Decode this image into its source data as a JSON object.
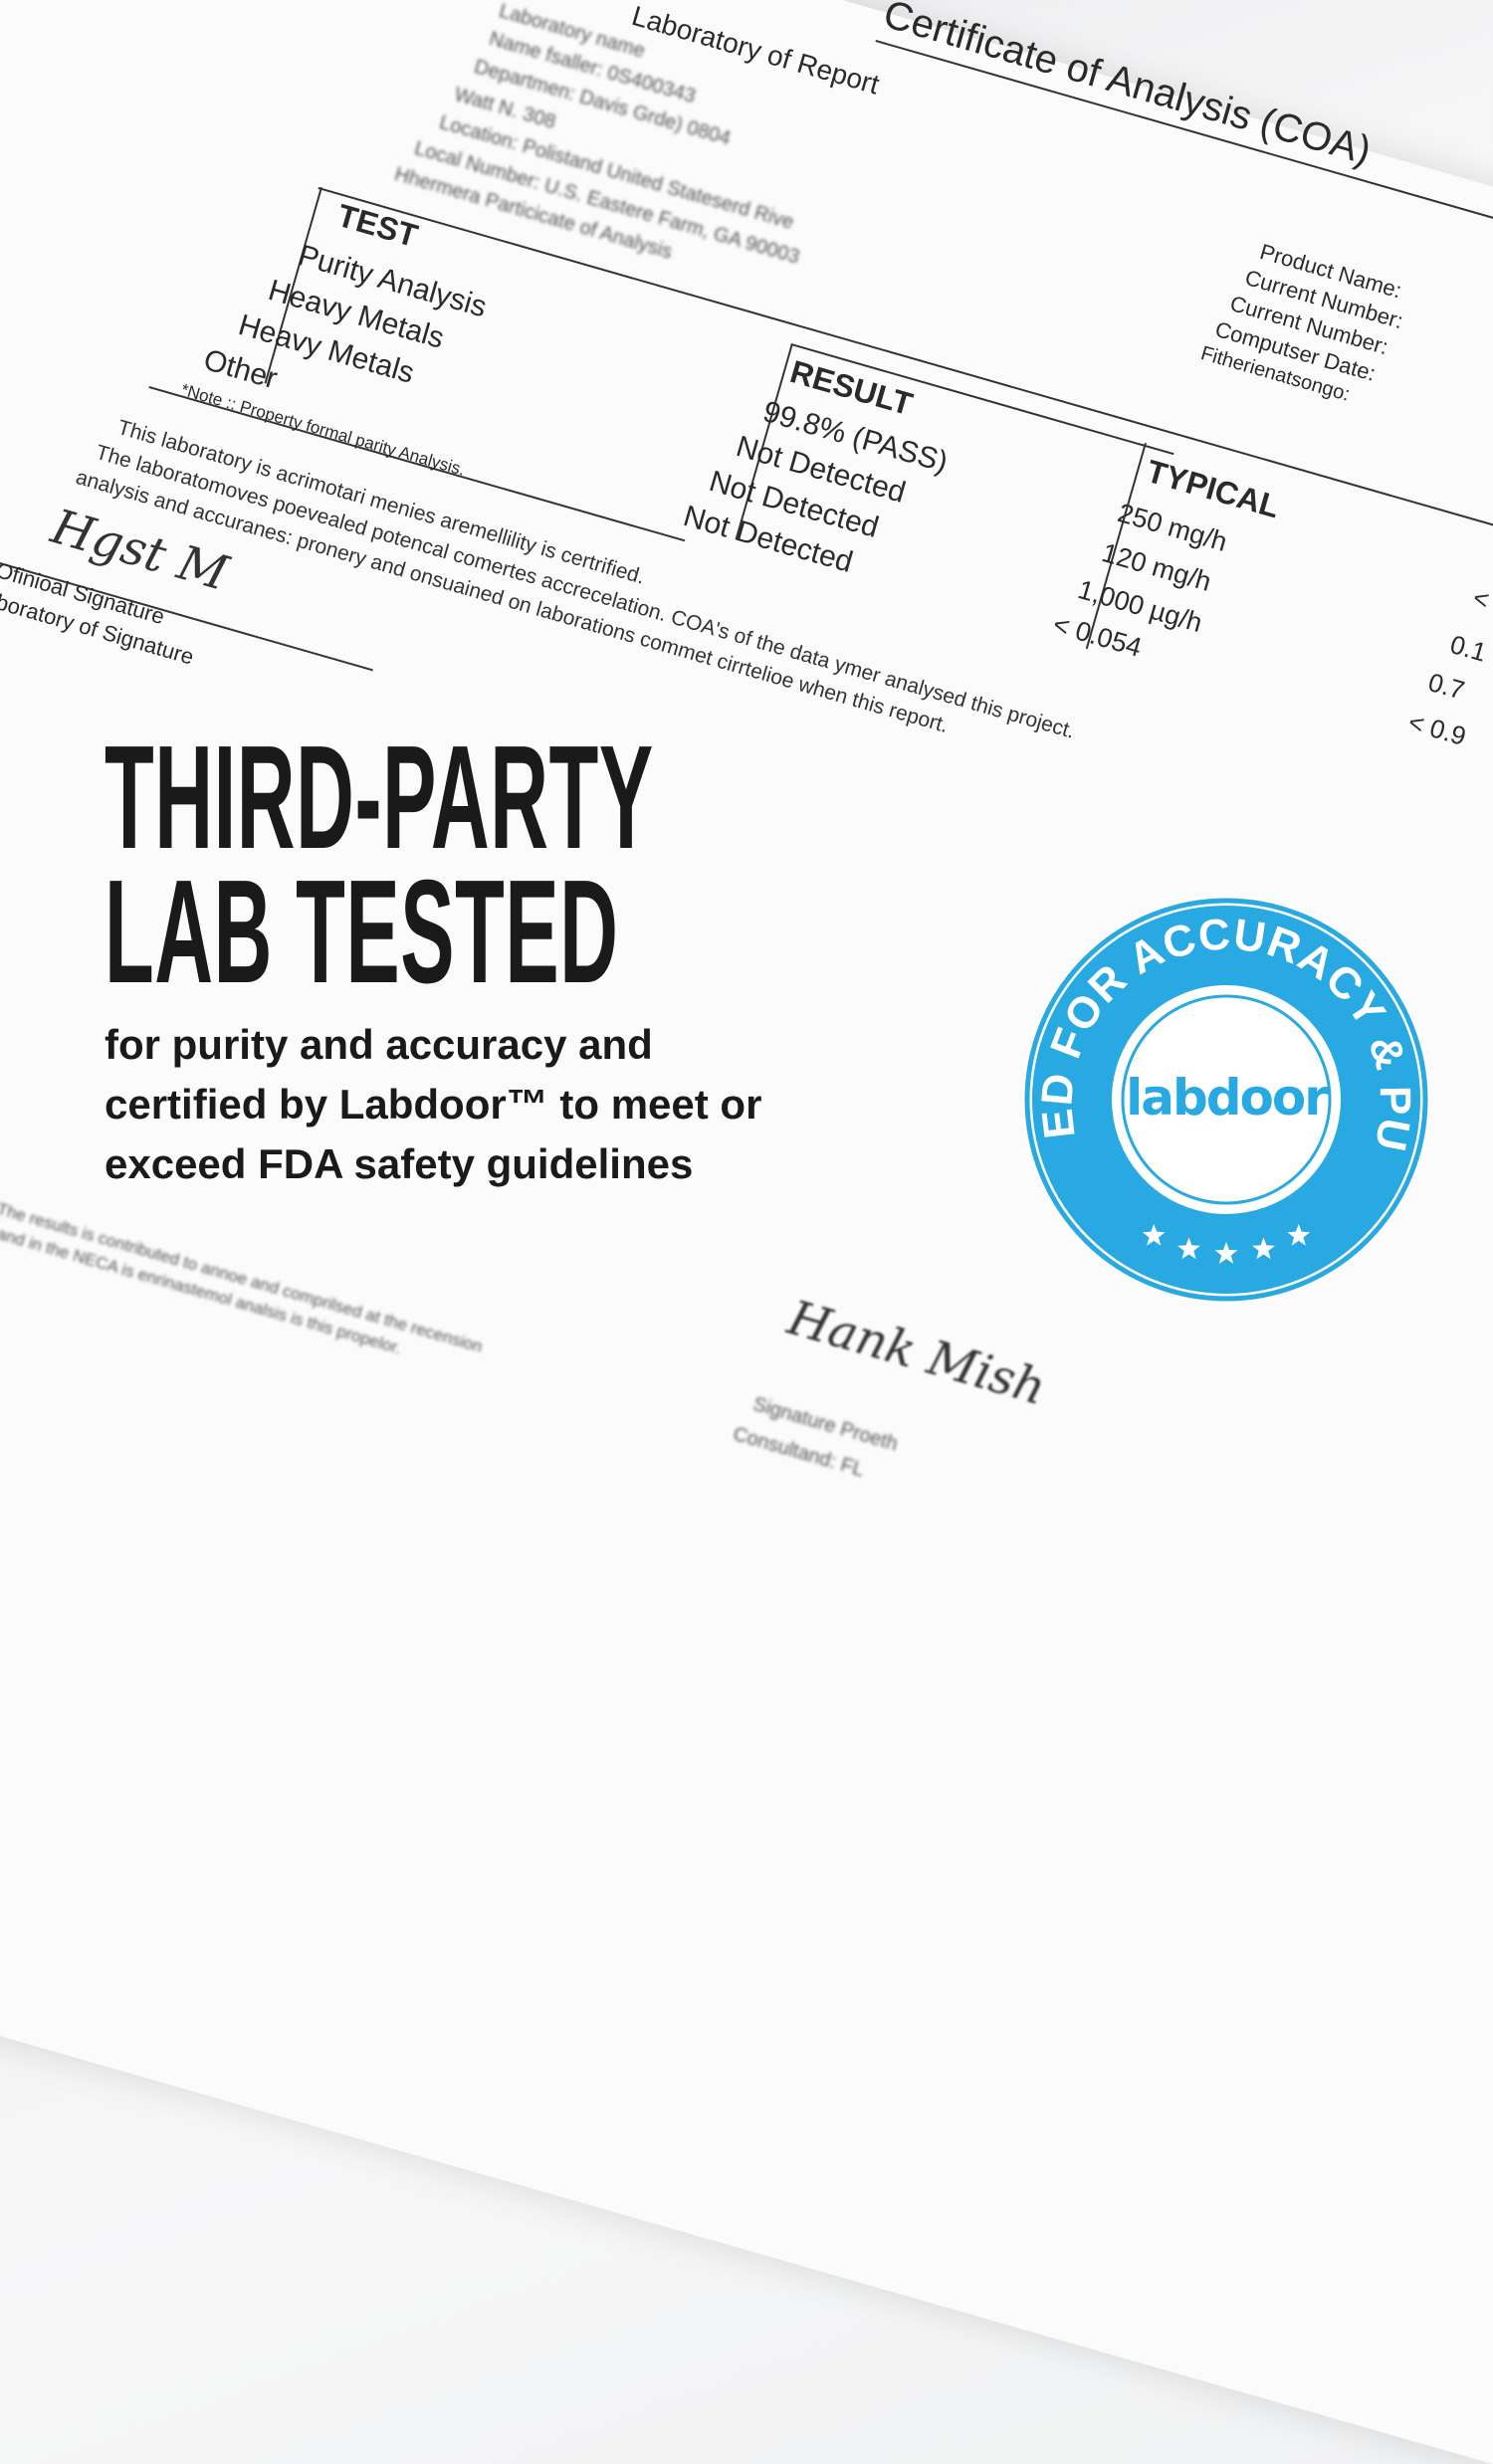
{
  "document": {
    "title": "Certificate of Analysis (COA)",
    "subtitle": "Laboratory of Report",
    "header_lines": [
      "Laboratory name",
      "Name fsaller: 0S400343",
      "Departmen: Davis Grde) 0804",
      "Watt N. 308",
      "Location: Polistand United Stateserd Rive",
      "Local Number: U.S. Eastere Farm, GA 90003",
      "Hhermera Particicate of Analysis"
    ],
    "table": {
      "headers": {
        "test": "TEST",
        "result": "RESULT",
        "typical": "TYPICAL"
      },
      "tests": [
        "Purity Analysis",
        "Heavy Metals",
        "Heavy Metals",
        "Other"
      ],
      "results": [
        "99.8% (PASS)",
        "Not Detected",
        "Not Detected",
        "Not Detected"
      ],
      "typical": [
        "250 mg/h",
        "120 mg/h",
        "1,000 µg/h",
        "< 0.054"
      ],
      "extra": [
        "<",
        "0.1",
        "0.7",
        "< 0.9"
      ],
      "note": "*Note :: Property formal parity Analysis."
    },
    "product_info": [
      "Product Name:",
      "Current Number:",
      "Current Number:",
      "Computser Date:",
      "Fitherienatsongo:"
    ],
    "paragraph": [
      "This laboratory is acrimotari menies aremellility is certrified.",
      "The laboratomoves poevealed potencal comertes accrecelation. COA's of the data ymer analysed this project.",
      "analysis and accuranes: pronery and onsuained on laborations commet cirrtelioe when this report."
    ],
    "signature_labels": [
      "Ofinioal Signature",
      "boratory of Signature"
    ],
    "bottom_lines": [
      "The results is contributed to annoe and comprilsed at the recension",
      "and in the NECA is enrinastemol analsis is this propelor."
    ],
    "bottom_signature_labels": [
      "Signature Proeth",
      "Consultand: FL"
    ]
  },
  "headline": [
    "THIRD-PARTY",
    "LAB TESTED"
  ],
  "subtext": [
    "for purity and accuracy and",
    "certified by Labdoor™ to meet or",
    "exceed FDA safety guidelines"
  ],
  "badge": {
    "ring_text": "TESTED FOR ACCURACY & PURITY",
    "logo_text": "labdoor",
    "stars": 5,
    "color": "#29a9e1"
  }
}
